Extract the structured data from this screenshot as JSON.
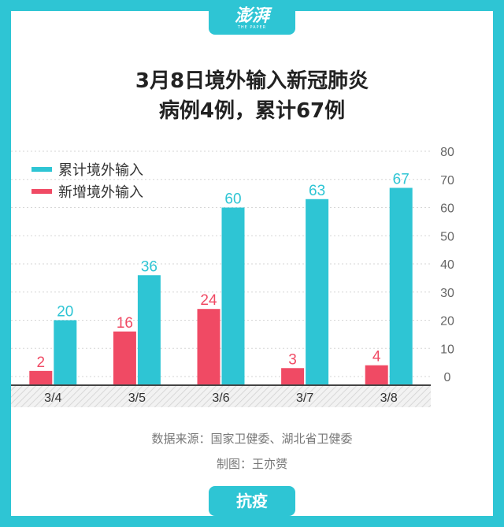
{
  "header": {
    "logo_text": "澎湃",
    "logo_sub": "THE PAPER"
  },
  "title": {
    "line1": "3月8日境外输入新冠肺炎",
    "line2": "病例4例，累计67例"
  },
  "chart_data": {
    "type": "bar",
    "categories": [
      "3/4",
      "3/5",
      "3/6",
      "3/7",
      "3/8"
    ],
    "series": [
      {
        "name": "新增境外输入",
        "values": [
          2,
          16,
          24,
          3,
          4
        ],
        "color": "#f04a64"
      },
      {
        "name": "累计境外输入",
        "values": [
          20,
          36,
          60,
          63,
          67
        ],
        "color": "#2ec5d4"
      }
    ],
    "legend_order": [
      "累计境外输入",
      "新增境外输入"
    ],
    "ylim": [
      0,
      80
    ],
    "yticks": [
      0,
      10,
      20,
      30,
      40,
      50,
      60,
      70,
      80
    ],
    "y_axis_side": "right",
    "grid": true,
    "legend_position": "top-left"
  },
  "footer": {
    "source": "数据来源：国家卫健委、湖北省卫健委",
    "credit": "制图：王亦赟"
  },
  "bottom_tab": {
    "label": "抗疫"
  }
}
